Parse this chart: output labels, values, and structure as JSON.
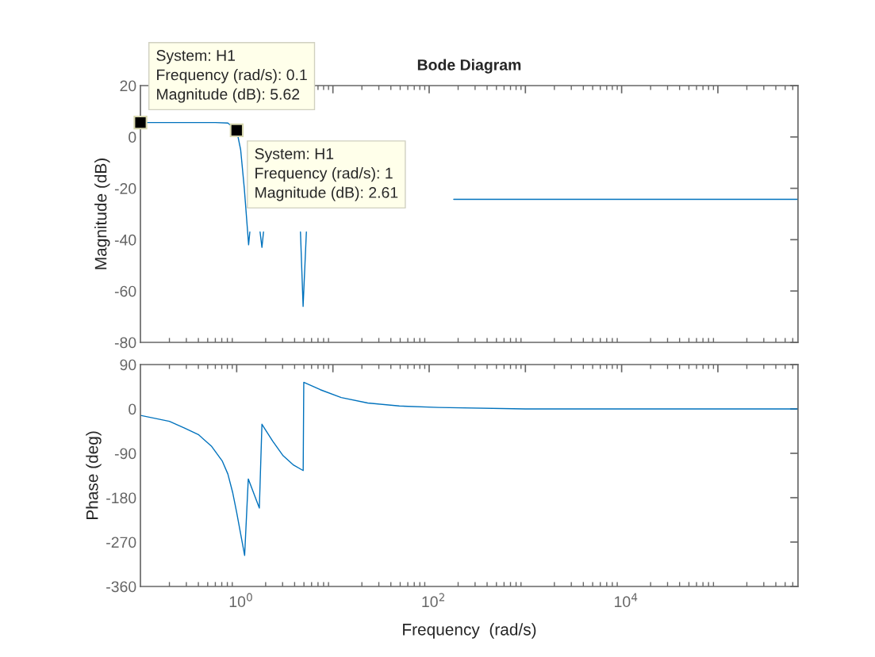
{
  "chart_data": [
    {
      "type": "line",
      "title": "Bode Diagram",
      "ylabel": "Magnitude (dB)",
      "log": "x",
      "tick_labels": "y",
      "grid": false,
      "xlim": [
        0.1,
        680000
      ],
      "xticks": [
        {
          "value": 1,
          "label": null
        },
        {
          "value": 10,
          "label": null
        },
        {
          "value": 100,
          "label": null
        },
        {
          "value": 1000,
          "label": null
        },
        {
          "value": 10000,
          "label": null
        },
        {
          "value": 100000,
          "label": null
        }
      ],
      "ylim": [
        -80,
        20
      ],
      "yticks": [
        -80,
        -60,
        -40,
        -20,
        0,
        20
      ],
      "series": [
        {
          "color": "#0072bd",
          "x": [
            0.1,
            0.3,
            0.6,
            0.81,
            1,
            1.1,
            1.2,
            1.3,
            1.33,
            1.37,
            1.5,
            1.75,
            1.83,
            1.9,
            3,
            4.6,
            4.9,
            5.3,
            8,
            180,
            1000,
            10000,
            680000
          ],
          "values": [
            5.62,
            5.62,
            5.6,
            5.4,
            2.61,
            -5,
            -20,
            -37,
            -42,
            -37,
            null,
            -37,
            -43,
            -37,
            null,
            -37,
            -66,
            -37,
            null,
            -24.3,
            -24.3,
            -24.3,
            -24.3
          ]
        }
      ],
      "annotations": [
        {
          "text": "System: H1\nFrequency (rad/s): 0.1\nMagnitude (dB): 5.62",
          "x": 0.1,
          "y": 5.62
        },
        {
          "text": "System: H1\nFrequency (rad/s): 1\nMagnitude (dB): 2.61",
          "x": 1,
          "y": 2.61
        }
      ]
    },
    {
      "type": "line",
      "xlabel": "Frequency  (rad/s)",
      "ylabel": "Phase (deg)",
      "log": "x",
      "grid": false,
      "xlim": [
        0.1,
        680000
      ],
      "xticks": [
        {
          "value": 1,
          "label": "10$^{0}$"
        },
        {
          "value": 10,
          "label": null
        },
        {
          "value": 100,
          "label": "10$^{2}$"
        },
        {
          "value": 1000,
          "label": null
        },
        {
          "value": 10000,
          "label": "10$^{4}$"
        },
        {
          "value": 100000,
          "label": null
        }
      ],
      "ylim": [
        -360,
        90
      ],
      "yticks": [
        -360,
        -270,
        -180,
        -90,
        0,
        90
      ],
      "series": [
        {
          "color": "#0072bd",
          "x": [
            0.1,
            0.2,
            0.29,
            0.4,
            0.55,
            0.71,
            0.81,
            0.91,
            1.0,
            1.21,
            1.32,
            1.72,
            1.83,
            2.36,
            3.04,
            3.91,
            4.91,
            4.98,
            7.4,
            12.2,
            23,
            49,
            126,
            1000,
            10000,
            680000
          ],
          "values": [
            -13,
            -25,
            -39,
            -52,
            -76,
            -106,
            -132,
            -170,
            -210,
            -297,
            -142,
            -201,
            -31,
            -65,
            -95,
            -114,
            -125,
            54,
            39,
            23,
            12,
            6,
            3,
            0,
            0,
            0
          ]
        }
      ]
    }
  ]
}
